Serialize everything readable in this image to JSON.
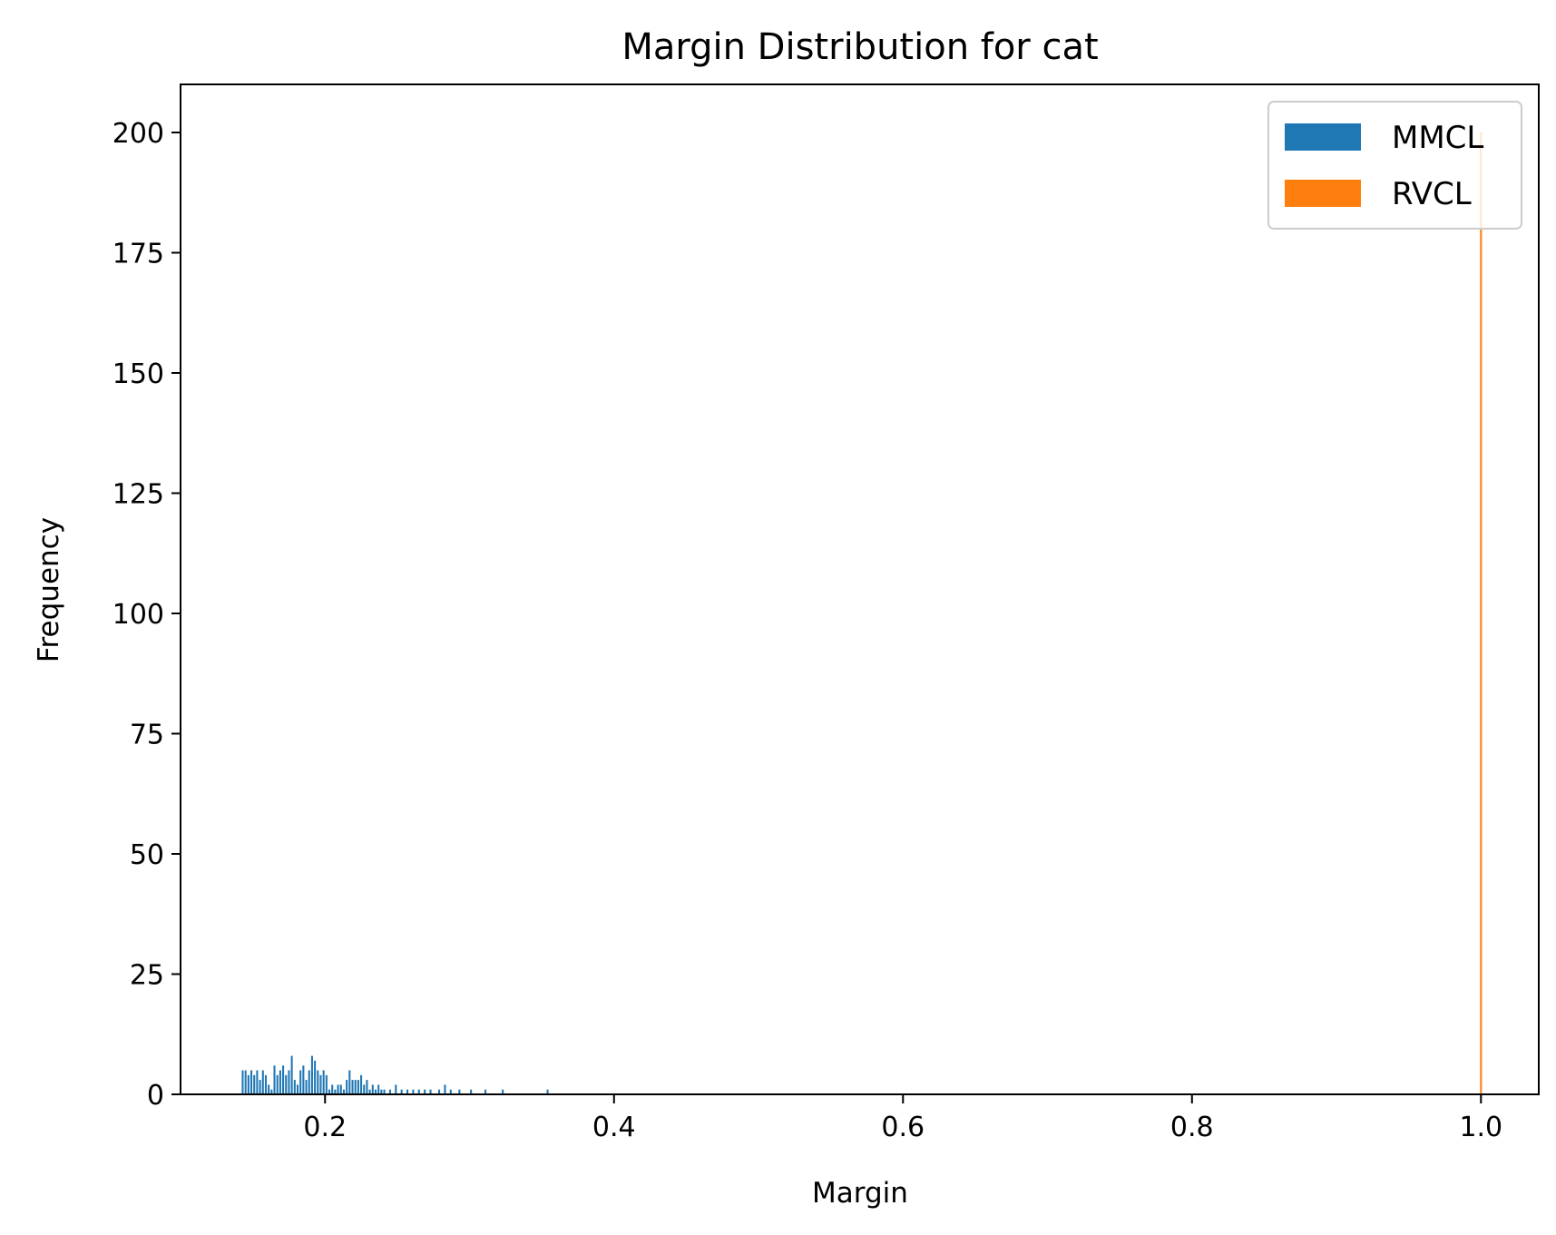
{
  "chart_data": {
    "type": "bar",
    "title": "Margin Distribution for cat",
    "xlabel": "Margin",
    "ylabel": "Frequency",
    "xlim": [
      0.1,
      1.04
    ],
    "ylim": [
      0,
      210
    ],
    "xticks": [
      0.2,
      0.4,
      0.6,
      0.8,
      1.0
    ],
    "xtick_labels": [
      "0.2",
      "0.4",
      "0.6",
      "0.8",
      "1.0"
    ],
    "yticks": [
      0,
      25,
      50,
      75,
      100,
      125,
      150,
      175,
      200
    ],
    "ytick_labels": [
      "0",
      "25",
      "50",
      "75",
      "100",
      "125",
      "150",
      "175",
      "200"
    ],
    "grid": false,
    "legend_position": "top-right",
    "series": [
      {
        "name": "MMCL",
        "color": "#1f77b4",
        "bins": [
          {
            "x": 0.143,
            "y": 5
          },
          {
            "x": 0.145,
            "y": 5
          },
          {
            "x": 0.147,
            "y": 4
          },
          {
            "x": 0.149,
            "y": 5
          },
          {
            "x": 0.151,
            "y": 4
          },
          {
            "x": 0.153,
            "y": 5
          },
          {
            "x": 0.155,
            "y": 3
          },
          {
            "x": 0.157,
            "y": 5
          },
          {
            "x": 0.159,
            "y": 4
          },
          {
            "x": 0.161,
            "y": 2
          },
          {
            "x": 0.163,
            "y": 1
          },
          {
            "x": 0.165,
            "y": 6
          },
          {
            "x": 0.167,
            "y": 4
          },
          {
            "x": 0.169,
            "y": 5
          },
          {
            "x": 0.171,
            "y": 6
          },
          {
            "x": 0.173,
            "y": 4
          },
          {
            "x": 0.175,
            "y": 5
          },
          {
            "x": 0.177,
            "y": 8
          },
          {
            "x": 0.179,
            "y": 3
          },
          {
            "x": 0.181,
            "y": 2
          },
          {
            "x": 0.183,
            "y": 5
          },
          {
            "x": 0.185,
            "y": 6
          },
          {
            "x": 0.187,
            "y": 3
          },
          {
            "x": 0.189,
            "y": 5
          },
          {
            "x": 0.191,
            "y": 8
          },
          {
            "x": 0.193,
            "y": 7
          },
          {
            "x": 0.195,
            "y": 5
          },
          {
            "x": 0.197,
            "y": 4
          },
          {
            "x": 0.199,
            "y": 5
          },
          {
            "x": 0.201,
            "y": 4
          },
          {
            "x": 0.203,
            "y": 1
          },
          {
            "x": 0.205,
            "y": 2
          },
          {
            "x": 0.207,
            "y": 1
          },
          {
            "x": 0.209,
            "y": 2
          },
          {
            "x": 0.211,
            "y": 2
          },
          {
            "x": 0.213,
            "y": 1
          },
          {
            "x": 0.215,
            "y": 3
          },
          {
            "x": 0.217,
            "y": 5
          },
          {
            "x": 0.219,
            "y": 3
          },
          {
            "x": 0.221,
            "y": 3
          },
          {
            "x": 0.223,
            "y": 3
          },
          {
            "x": 0.225,
            "y": 4
          },
          {
            "x": 0.227,
            "y": 2
          },
          {
            "x": 0.229,
            "y": 3
          },
          {
            "x": 0.231,
            "y": 1
          },
          {
            "x": 0.233,
            "y": 2
          },
          {
            "x": 0.235,
            "y": 1
          },
          {
            "x": 0.237,
            "y": 2
          },
          {
            "x": 0.239,
            "y": 1
          },
          {
            "x": 0.241,
            "y": 1
          },
          {
            "x": 0.245,
            "y": 1
          },
          {
            "x": 0.249,
            "y": 2
          },
          {
            "x": 0.253,
            "y": 1
          },
          {
            "x": 0.257,
            "y": 1
          },
          {
            "x": 0.261,
            "y": 1
          },
          {
            "x": 0.265,
            "y": 1
          },
          {
            "x": 0.269,
            "y": 1
          },
          {
            "x": 0.273,
            "y": 1
          },
          {
            "x": 0.279,
            "y": 1
          },
          {
            "x": 0.283,
            "y": 2
          },
          {
            "x": 0.287,
            "y": 1
          },
          {
            "x": 0.293,
            "y": 1
          },
          {
            "x": 0.301,
            "y": 1
          },
          {
            "x": 0.311,
            "y": 1
          },
          {
            "x": 0.323,
            "y": 1
          },
          {
            "x": 0.354,
            "y": 1
          }
        ],
        "bin_width": 0.0013
      },
      {
        "name": "RVCL",
        "color": "#ff7f0e",
        "bins": [
          {
            "x": 1.0,
            "y": 200
          }
        ],
        "bin_width": 0.0013
      }
    ]
  }
}
